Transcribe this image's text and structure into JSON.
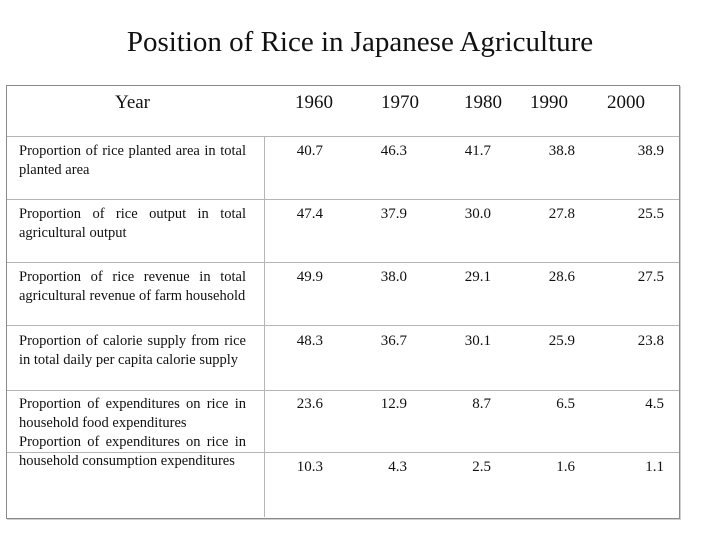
{
  "title": "Position of Rice in Japanese Agriculture",
  "header": {
    "year_label": "Year",
    "years": [
      "1960",
      "1970",
      "1980",
      "1990",
      "2000"
    ]
  },
  "rows": [
    {
      "label": "Proportion of rice planted area in total planted area",
      "values": [
        "40.7",
        "46.3",
        "41.7",
        "38.8",
        "38.9"
      ]
    },
    {
      "label": "Proportion of rice output in total agricultural output",
      "values": [
        "47.4",
        "37.9",
        "30.0",
        "27.8",
        "25.5"
      ]
    },
    {
      "label": "Proportion of rice revenue in total agricultural revenue of farm household",
      "values": [
        "49.9",
        "38.0",
        "29.1",
        "28.6",
        "27.5"
      ]
    },
    {
      "label": "Proportion of calorie supply from rice in total daily per capita calorie supply",
      "values": [
        "48.3",
        "36.7",
        "30.1",
        "25.9",
        "23.8"
      ]
    },
    {
      "label": "Proportion of expenditures on rice in household food expenditures",
      "values": [
        "23.6",
        "12.9",
        "8.7",
        "6.5",
        "4.5"
      ]
    },
    {
      "label": "Proportion of expenditures on rice in household consumption expenditures",
      "values": [
        "10.3",
        "4.3",
        "2.5",
        "1.6",
        "1.1"
      ]
    }
  ]
}
